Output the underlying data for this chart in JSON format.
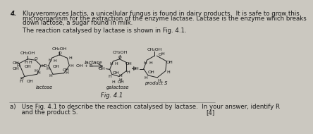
{
  "bg_color": "#cbc8c0",
  "text_color": "#1a1a1a",
  "question_number": "4.",
  "intro_line1": "Kluyveromyces lactis, a unicellular fungus is found in dairy products.  It is safe to grow this",
  "intro_line2": "microorganism for the extraction of the enzyme lactase. Lactase is the enzyme which breaks",
  "intro_line3": "down lactose, a sugar found in milk.",
  "fig_intro": "The reaction catalysed by lactase is shown in Fig. 4.1.",
  "fig_label": "Fig. 4.1",
  "question_a1": "a)   Use Fig. 4.1 to describe the reaction catalysed by lactase.  In your answer, identify R",
  "question_a2": "      and the product S.",
  "marks": "[4]",
  "fs_body": 6.2,
  "fs_chem": 4.8,
  "fs_fig": 6.0
}
